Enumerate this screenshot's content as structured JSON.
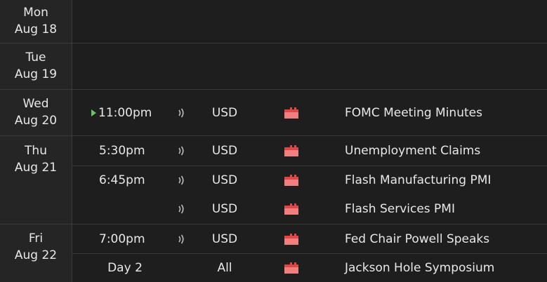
{
  "colors": {
    "background": "#1e1e1e",
    "date_column": "#252525",
    "separator": "#3a3a3a",
    "text": "#e8e8e8",
    "impact_high": "#e04646",
    "next_marker": "#6cc36c"
  },
  "days": [
    {
      "dow": "Mon",
      "date": "Aug 18",
      "events": []
    },
    {
      "dow": "Tue",
      "date": "Aug 19",
      "events": []
    },
    {
      "dow": "Wed",
      "date": "Aug 20",
      "events": [
        {
          "time": "11:00pm",
          "is_next": true,
          "currency": "USD",
          "impact": "high",
          "impact_icon": "high-impact-folder-icon",
          "sound_icon": "sound-wave-icon",
          "title": "FOMC Meeting Minutes"
        }
      ]
    },
    {
      "dow": "Thu",
      "date": "Aug 21",
      "events": [
        {
          "time": "5:30pm",
          "currency": "USD",
          "impact": "high",
          "impact_icon": "high-impact-folder-icon",
          "sound_icon": "sound-wave-icon",
          "title": "Unemployment Claims"
        },
        {
          "time": "6:45pm",
          "currency": "USD",
          "impact": "high",
          "impact_icon": "high-impact-folder-icon",
          "sound_icon": "sound-wave-icon",
          "title": "Flash Manufacturing PMI"
        },
        {
          "time": "",
          "currency": "USD",
          "impact": "high",
          "impact_icon": "high-impact-folder-icon",
          "sound_icon": "sound-wave-icon",
          "title": "Flash Services PMI"
        }
      ]
    },
    {
      "dow": "Fri",
      "date": "Aug 22",
      "events": [
        {
          "time": "7:00pm",
          "currency": "USD",
          "impact": "high",
          "impact_icon": "high-impact-folder-icon",
          "sound_icon": "sound-wave-icon",
          "title": "Fed Chair Powell Speaks"
        },
        {
          "time": "Day 2",
          "currency": "All",
          "impact": "high",
          "impact_icon": "high-impact-folder-icon",
          "title": "Jackson Hole Symposium"
        }
      ]
    }
  ]
}
